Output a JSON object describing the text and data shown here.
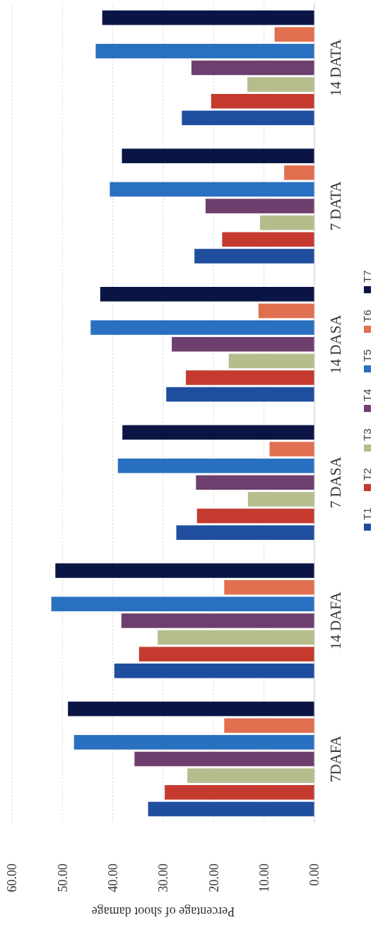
{
  "chart_data": {
    "type": "bar",
    "orientation": "horizontal",
    "xlabel": "Percentage of shoot damage",
    "categories": [
      "14 DATA",
      "7 DATA",
      "14 DASA",
      "7 DASA",
      "14 DAFA",
      "7DAFA"
    ],
    "series": [
      {
        "name": "T1",
        "color": "#1f4e9f",
        "values": [
          26.3,
          23.8,
          29.4,
          27.4,
          39.7,
          33.0
        ]
      },
      {
        "name": "T2",
        "color": "#c43a2f",
        "values": [
          20.5,
          18.3,
          25.5,
          23.3,
          34.8,
          29.7
        ]
      },
      {
        "name": "T3",
        "color": "#b5bd8c",
        "values": [
          13.3,
          10.8,
          17.0,
          13.2,
          31.1,
          25.2
        ]
      },
      {
        "name": "T4",
        "color": "#6e3f6e",
        "values": [
          24.4,
          21.6,
          28.3,
          23.5,
          38.3,
          35.7
        ]
      },
      {
        "name": "T5",
        "color": "#2a70c0",
        "values": [
          43.4,
          40.6,
          44.4,
          39.0,
          52.2,
          47.7
        ]
      },
      {
        "name": "T6",
        "color": "#e07050",
        "values": [
          7.9,
          6.0,
          11.1,
          8.9,
          17.9,
          17.9
        ]
      },
      {
        "name": "T7",
        "color": "#0b1545",
        "values": [
          42.1,
          38.2,
          42.5,
          38.1,
          51.4,
          48.9
        ]
      }
    ],
    "xlim": [
      60,
      0
    ],
    "xticks": [
      {
        "value": 60,
        "label": "60.00"
      },
      {
        "value": 50,
        "label": "50.00"
      },
      {
        "value": 40,
        "label": "40.00"
      },
      {
        "value": 30,
        "label": "30.00"
      },
      {
        "value": 20,
        "label": "20.00"
      },
      {
        "value": 10,
        "label": "10.00"
      },
      {
        "value": 0,
        "label": "0.00"
      }
    ],
    "grid": "x",
    "legend": "right"
  }
}
